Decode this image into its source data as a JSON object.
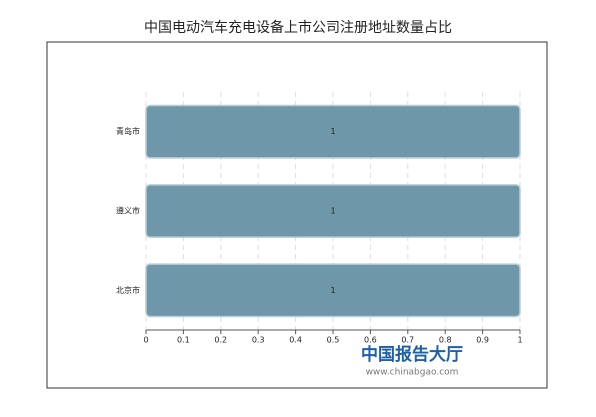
{
  "chart_data": {
    "type": "barh",
    "title": "中国电动汽车充电设备上市公司注册地址数量占比",
    "categories": [
      "青岛市",
      "遵义市",
      "北京市"
    ],
    "values": [
      1,
      1,
      1
    ],
    "color": "#6e98a9",
    "xlim": [
      0,
      1
    ],
    "xticks": [
      0,
      0.1,
      0.2,
      0.3,
      0.4,
      0.5,
      0.6,
      0.7,
      0.8,
      0.9,
      1
    ],
    "grid": true,
    "watermark": {
      "name": "中国报告大厅",
      "url": "www.chinabgao.com"
    }
  }
}
